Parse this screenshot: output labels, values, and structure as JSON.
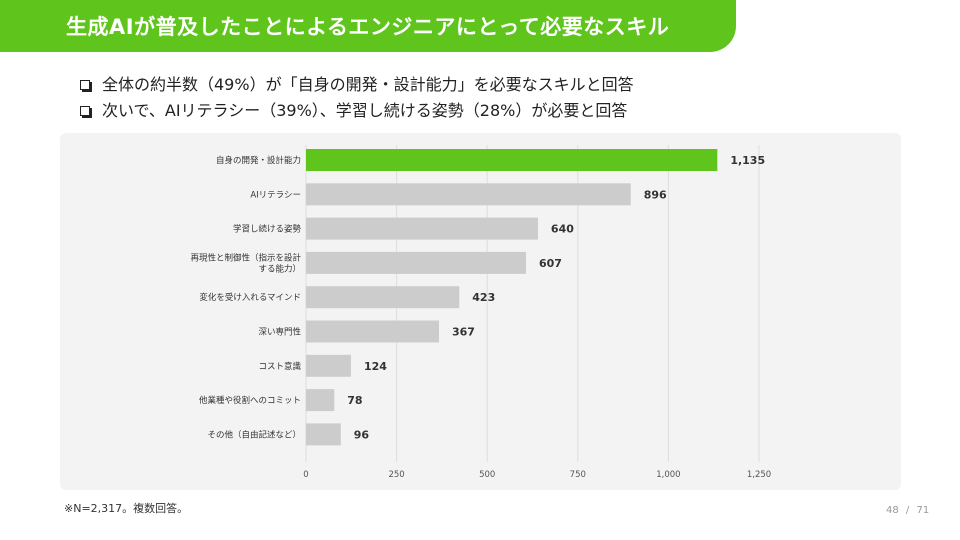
{
  "slide": {
    "title": "生成AIが普及したことによるエンジニアにとって必要なスキル",
    "bullets": [
      "全体の約半数（49%）が「自身の開発・設計能力」を必要なスキルと回答",
      "次いで、AIリテラシー（39%）、学習し続ける姿勢（28%）が必要と回答"
    ],
    "footnote": "※N=2,317。複数回答。",
    "page": {
      "current": "48",
      "separator": "/",
      "total": "71"
    }
  },
  "colors": {
    "banner": "#5fc41c",
    "highlight_bar": "#5fc41c",
    "bar": "#cccccc",
    "panel": "#f3f3f3"
  },
  "chart_data": {
    "type": "bar",
    "orientation": "horizontal",
    "categories": [
      [
        "自身の開発・設計能力"
      ],
      [
        "AIリテラシー"
      ],
      [
        "学習し続ける姿勢"
      ],
      [
        "再現性と制御性（指示を設計",
        "する能力）"
      ],
      [
        "変化を受け入れるマインド"
      ],
      [
        "深い専門性"
      ],
      [
        "コスト意識"
      ],
      [
        "他業種や役割へのコミット"
      ],
      [
        "その他（自由記述など）"
      ]
    ],
    "values": [
      1135,
      896,
      640,
      607,
      423,
      367,
      124,
      78,
      96
    ],
    "value_labels": [
      "1,135",
      "896",
      "640",
      "607",
      "423",
      "367",
      "124",
      "78",
      "96"
    ],
    "highlight_index": 0,
    "xlim": [
      0,
      1250
    ],
    "xticks": [
      0,
      250,
      500,
      750,
      1000,
      1250
    ],
    "xtick_labels": [
      "0",
      "250",
      "500",
      "750",
      "1,000",
      "1,250"
    ],
    "grid": true
  }
}
